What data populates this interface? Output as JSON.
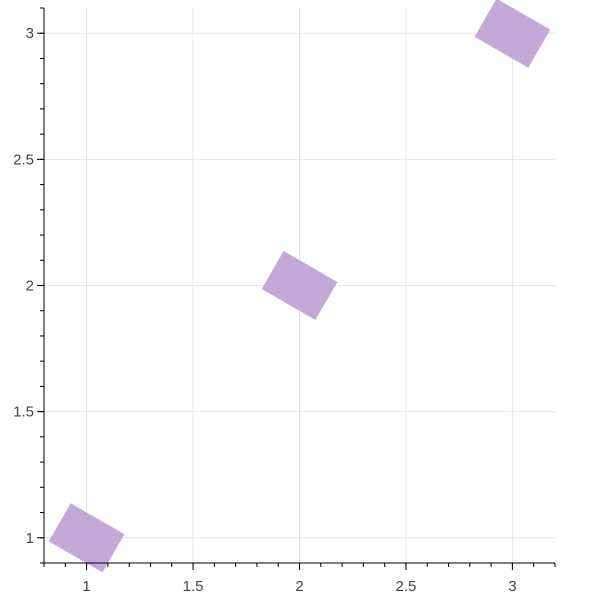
{
  "chart_data": {
    "type": "scatter",
    "marker": "rect",
    "marker_color": "#c4a8d7",
    "marker_angle_deg": 30,
    "xlim": [
      0.8,
      3.2
    ],
    "ylim": [
      0.9,
      3.1
    ],
    "x_ticks": [
      1,
      1.5,
      2,
      2.5,
      3
    ],
    "x_tick_labels": [
      "1",
      "1.5",
      "2",
      "2.5",
      "3"
    ],
    "y_ticks": [
      1,
      1.5,
      2,
      2.5,
      3
    ],
    "y_tick_labels": [
      "1",
      "1.5",
      "2",
      "2.5",
      "3"
    ],
    "grid": true,
    "points": [
      {
        "x": 1,
        "y": 1
      },
      {
        "x": 2,
        "y": 2
      },
      {
        "x": 3,
        "y": 3
      }
    ]
  }
}
